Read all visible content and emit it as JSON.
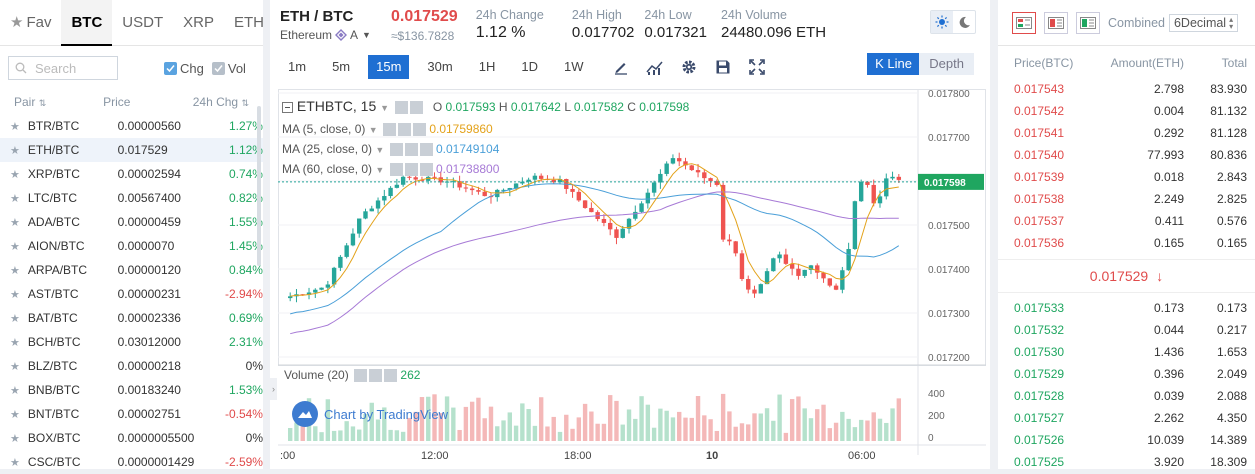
{
  "market_tabs": {
    "fav": "Fav",
    "items": [
      "BTC",
      "USDT",
      "XRP",
      "ETH"
    ],
    "active": "BTC"
  },
  "search": {
    "placeholder": "Search"
  },
  "toggles": {
    "chg": "Chg",
    "vol": "Vol"
  },
  "pair_headers": {
    "pair": "Pair",
    "price": "Price",
    "chg": "24h Chg"
  },
  "pairs": [
    {
      "pair": "BTR/BTC",
      "price": "0.00000560",
      "chg": "1.27%",
      "dir": "up"
    },
    {
      "pair": "ETH/BTC",
      "price": "0.017529",
      "chg": "1.12%",
      "dir": "up"
    },
    {
      "pair": "XRP/BTC",
      "price": "0.00002594",
      "chg": "0.74%",
      "dir": "up"
    },
    {
      "pair": "LTC/BTC",
      "price": "0.00567400",
      "chg": "0.82%",
      "dir": "up"
    },
    {
      "pair": "ADA/BTC",
      "price": "0.00000459",
      "chg": "1.55%",
      "dir": "up"
    },
    {
      "pair": "AION/BTC",
      "price": "0.0000070",
      "chg": "1.45%",
      "dir": "up"
    },
    {
      "pair": "ARPA/BTC",
      "price": "0.00000120",
      "chg": "0.84%",
      "dir": "up"
    },
    {
      "pair": "AST/BTC",
      "price": "0.00000231",
      "chg": "-2.94%",
      "dir": "down"
    },
    {
      "pair": "BAT/BTC",
      "price": "0.00002336",
      "chg": "0.69%",
      "dir": "up"
    },
    {
      "pair": "BCH/BTC",
      "price": "0.03012000",
      "chg": "2.31%",
      "dir": "up"
    },
    {
      "pair": "BLZ/BTC",
      "price": "0.00000218",
      "chg": "0%",
      "dir": "flat"
    },
    {
      "pair": "BNB/BTC",
      "price": "0.00183240",
      "chg": "1.53%",
      "dir": "up"
    },
    {
      "pair": "BNT/BTC",
      "price": "0.00002751",
      "chg": "-0.54%",
      "dir": "down"
    },
    {
      "pair": "BOX/BTC",
      "price": "0.0000005500",
      "chg": "0%",
      "dir": "flat"
    },
    {
      "pair": "CSC/BTC",
      "price": "0.0000001429",
      "chg": "-2.59%",
      "dir": "down"
    }
  ],
  "ticker": {
    "symbol": "ETH / BTC",
    "name": "Ethereum",
    "badge": "A",
    "last": "0.017529",
    "usd": "≈$136.7828",
    "change_label": "24h Change",
    "change": "1.12 %",
    "high_label": "24h High",
    "high": "0.017702",
    "low_label": "24h Low",
    "low": "0.017321",
    "volume_label": "24h Volume",
    "volume": "24480.096 ETH"
  },
  "intervals": [
    "1m",
    "5m",
    "15m",
    "30m",
    "1H",
    "1D",
    "1W"
  ],
  "active_interval": "15m",
  "view_buttons": {
    "kline": "K Line",
    "depth": "Depth"
  },
  "chart_data": {
    "type": "candlestick",
    "symbol_label": "ETHBTC, 15",
    "ohlc": {
      "o": "0.017593",
      "h": "0.017642",
      "l": "0.017582",
      "c": "0.017598"
    },
    "ma": [
      {
        "label": "MA (5, close, 0)",
        "value": "0.01759860",
        "color": "#e3a21a"
      },
      {
        "label": "MA (25, close, 0)",
        "value": "0.01749104",
        "color": "#4a9fd8"
      },
      {
        "label": "MA (60, close, 0)",
        "value": "0.01738800",
        "color": "#a77ad6"
      }
    ],
    "y_ticks": [
      "0.017800",
      "0.017700",
      "0.017600",
      "0.017500",
      "0.017400",
      "0.017300",
      "0.017200"
    ],
    "ylim": [
      0.0172,
      0.0178
    ],
    "current_price_tag": "0.017598",
    "x_ticks": [
      ":00",
      "12:00",
      "18:00",
      "10",
      "06:00"
    ],
    "volume_label": "Volume (20)",
    "volume_value": "262",
    "volume_ticks": [
      "400",
      "200",
      "0"
    ],
    "watermark": "Chart by TradingView",
    "up_color": "#26a69a",
    "down_color": "#ef5350"
  },
  "orderbook": {
    "combined_label": "Combined",
    "decimal": "6Decimal",
    "headers": {
      "price": "Price(BTC)",
      "amount": "Amount(ETH)",
      "total": "Total"
    },
    "asks": [
      {
        "price": "0.017543",
        "amount": "2.798",
        "total": "83.930"
      },
      {
        "price": "0.017542",
        "amount": "0.004",
        "total": "81.132"
      },
      {
        "price": "0.017541",
        "amount": "0.292",
        "total": "81.128"
      },
      {
        "price": "0.017540",
        "amount": "77.993",
        "total": "80.836"
      },
      {
        "price": "0.017539",
        "amount": "0.018",
        "total": "2.843"
      },
      {
        "price": "0.017538",
        "amount": "2.249",
        "total": "2.825"
      },
      {
        "price": "0.017537",
        "amount": "0.411",
        "total": "0.576"
      },
      {
        "price": "0.017536",
        "amount": "0.165",
        "total": "0.165"
      }
    ],
    "mid_price": "0.017529",
    "bids": [
      {
        "price": "0.017533",
        "amount": "0.173",
        "total": "0.173"
      },
      {
        "price": "0.017532",
        "amount": "0.044",
        "total": "0.217"
      },
      {
        "price": "0.017530",
        "amount": "1.436",
        "total": "1.653"
      },
      {
        "price": "0.017529",
        "amount": "0.396",
        "total": "2.049"
      },
      {
        "price": "0.017528",
        "amount": "0.039",
        "total": "2.088"
      },
      {
        "price": "0.017527",
        "amount": "2.262",
        "total": "4.350"
      },
      {
        "price": "0.017526",
        "amount": "10.039",
        "total": "14.389"
      },
      {
        "price": "0.017525",
        "amount": "3.920",
        "total": "18.309"
      }
    ]
  }
}
